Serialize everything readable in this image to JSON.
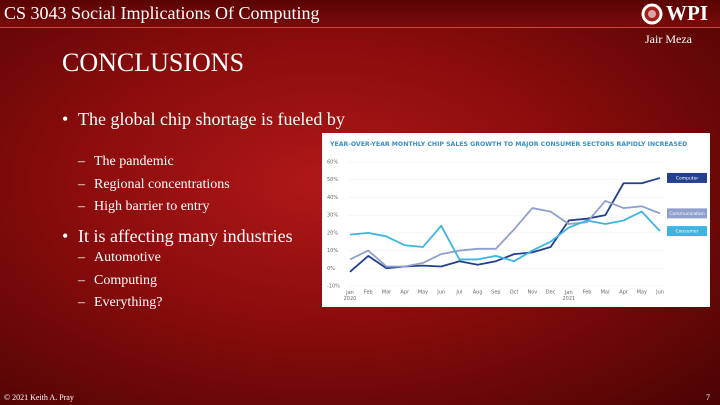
{
  "header": {
    "course": "CS 3043 Social Implications Of Computing",
    "logo": "WPI",
    "author": "Jair Meza"
  },
  "title": "CONCLUSIONS",
  "bullets": [
    {
      "text": "The global chip shortage is fueled by",
      "sub": [
        "The pandemic",
        "Regional concentrations",
        "High barrier to entry"
      ]
    },
    {
      "text": "It is affecting many industries",
      "sub": [
        "Automotive",
        "Computing",
        "Everything?"
      ]
    }
  ],
  "chart_data": {
    "type": "line",
    "title": "YEAR-OVER-YEAR MONTHLY CHIP SALES GROWTH TO MAJOR CONSUMER SECTORS RAPIDLY INCREASED",
    "categories": [
      "Jan 2020",
      "Feb",
      "Mar",
      "Apr",
      "May",
      "Jun",
      "Jul",
      "Aug",
      "Sep",
      "Oct",
      "Nov",
      "Dec",
      "Jan 2021",
      "Feb",
      "Mar",
      "Apr",
      "May",
      "Jun"
    ],
    "series": [
      {
        "name": "Computer",
        "color": "#23408e",
        "values": [
          -2,
          7,
          0,
          1,
          1.5,
          1,
          4,
          2,
          4,
          8,
          9,
          12,
          27,
          28,
          30,
          48,
          48,
          51
        ]
      },
      {
        "name": "Communication",
        "color": "#8fa0cc",
        "values": [
          5,
          10,
          1,
          1,
          3,
          8,
          10,
          11,
          11,
          22,
          34,
          32,
          25,
          26,
          38,
          34,
          35,
          31
        ]
      },
      {
        "name": "Consumer",
        "color": "#3db5e2",
        "values": [
          19,
          20,
          18,
          13,
          12,
          24,
          5,
          5,
          7,
          4,
          10,
          15,
          23,
          27,
          25,
          27,
          32,
          21
        ]
      }
    ],
    "ylim": [
      -10,
      60
    ],
    "yticks": [
      {
        "value": -10,
        "label": "-10%"
      },
      {
        "value": 0,
        "label": "0%"
      },
      {
        "value": 10,
        "label": "10%"
      },
      {
        "value": 20,
        "label": "20%"
      },
      {
        "value": 30,
        "label": "30%"
      },
      {
        "value": 40,
        "label": "40%"
      },
      {
        "value": 50,
        "label": "50%"
      },
      {
        "value": 60,
        "label": "60%"
      }
    ],
    "grid": true,
    "legend": "right"
  },
  "footer": {
    "copyright": "© 2021 Keith A. Pray",
    "page": "7"
  }
}
